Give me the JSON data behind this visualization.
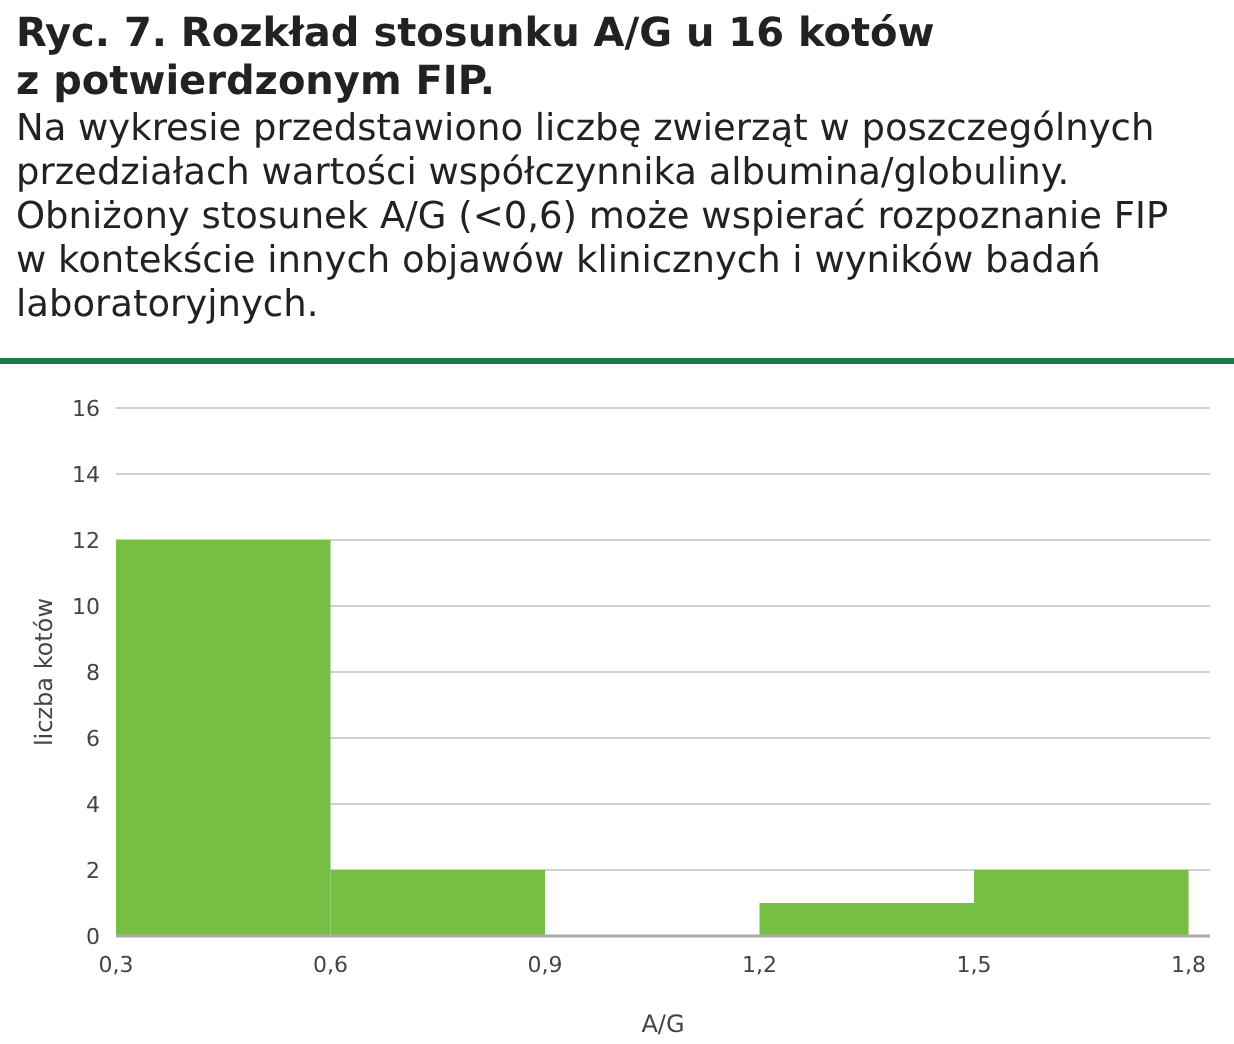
{
  "chart_data": {
    "type": "histogram",
    "title": "Ryc. 7. Rozkład stosunku A/G u 16 kotów z potwierdzonym FIP.",
    "subtitle": "Na wykresie przedstawiono liczbę zwierząt w poszczególnych przedziałach wartości współczynnika albumina/globuliny. Obniżony stosunek A/G (<0,6) może wspierać rozpoznanie FIP w kontekście innych objawów klinicznych i wyników badań laboratoryjnych.",
    "xlabel": "A/G",
    "ylabel": "liczba kotów",
    "bins": [
      0.3,
      0.6,
      0.9,
      1.2,
      1.5,
      1.8
    ],
    "values": [
      12,
      2,
      0,
      1,
      2
    ],
    "color": "#76bf44",
    "xlim": [
      0.3,
      1.83
    ],
    "xticks": [
      {
        "value": 0.3,
        "label": "0,3"
      },
      {
        "value": 0.6,
        "label": "0,6"
      },
      {
        "value": 0.9,
        "label": "0,9"
      },
      {
        "value": 1.2,
        "label": "1,2"
      },
      {
        "value": 1.5,
        "label": "1,5"
      },
      {
        "value": 1.8,
        "label": "1,8"
      }
    ],
    "ylim": [
      0,
      16
    ],
    "yticks": [
      0,
      2,
      4,
      6,
      8,
      10,
      12,
      14,
      16
    ],
    "grid": "y"
  }
}
